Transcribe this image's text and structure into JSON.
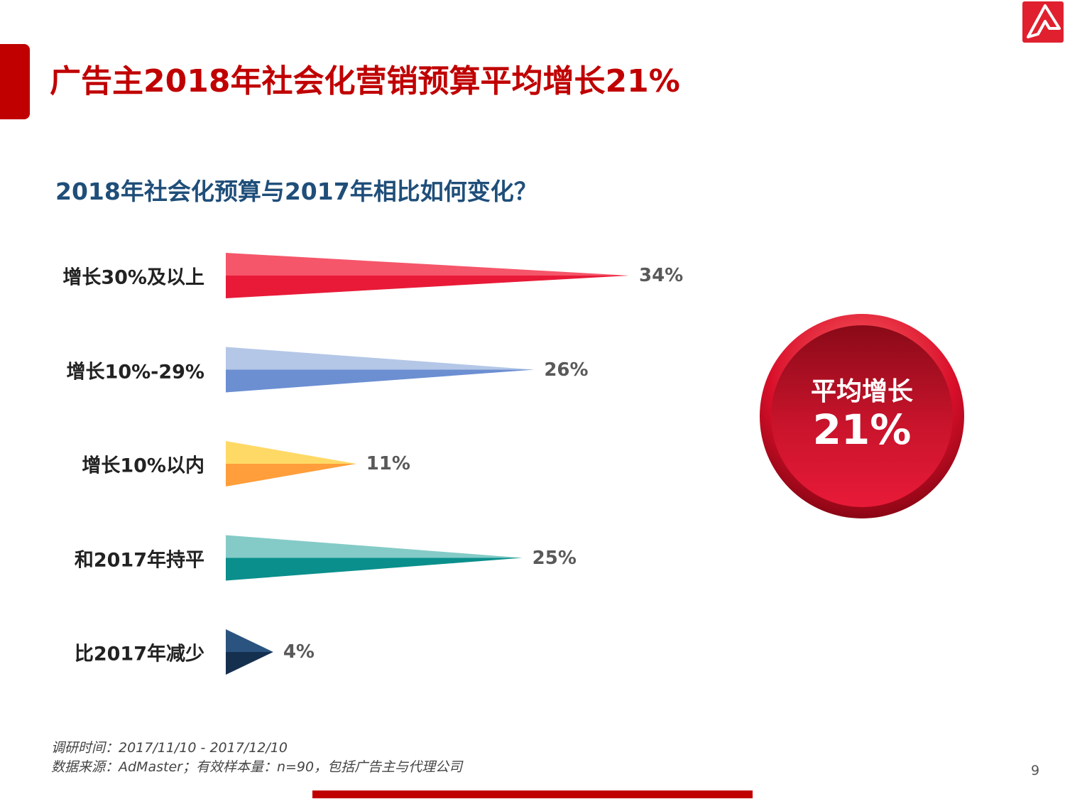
{
  "header": {
    "title": "广告主2018年社会化营销预算平均增长21%",
    "accent_color": "#c00000"
  },
  "chart_data": {
    "type": "bar",
    "title": "2018年社会化预算与2017年相比如何变化？",
    "categories": [
      "增长30%及以上",
      "增长10%-29%",
      "增长10%以内",
      "和2017年持平",
      "比2017年减少"
    ],
    "values": [
      34,
      26,
      11,
      25,
      4
    ],
    "value_labels": [
      "34%",
      "26%",
      "11%",
      "25%",
      "4%"
    ],
    "unit": "%",
    "xlim": [
      0,
      34
    ],
    "colors": [
      {
        "top": "#f5566a",
        "bottom": "#e81a38"
      },
      {
        "top": "#b4c7e7",
        "bottom": "#6c8fd2"
      },
      {
        "top": "#ffd966",
        "bottom": "#ff9e3b"
      },
      {
        "top": "#84cbc7",
        "bottom": "#0a8f8c"
      },
      {
        "top": "#2a5380",
        "bottom": "#152f4f"
      }
    ]
  },
  "badge": {
    "line1": "平均增长",
    "line2": "21%"
  },
  "footer": {
    "survey_time": "调研时间：2017/11/10 - 2017/12/10",
    "source": "数据来源：AdMaster；有效样本量：n=90，包括广告主与代理公司",
    "page_number": "9"
  },
  "icons": [
    "logo-icon"
  ]
}
